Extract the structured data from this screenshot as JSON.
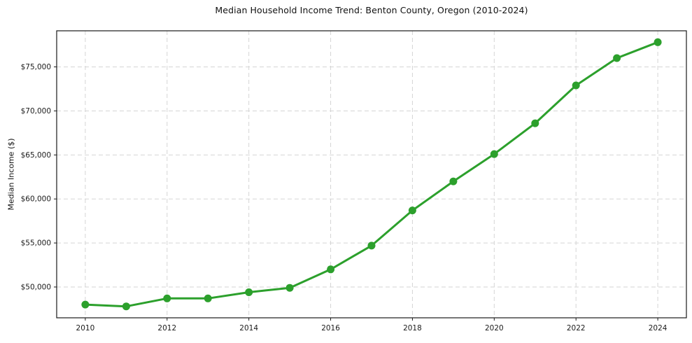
{
  "chart_data": {
    "type": "line",
    "title": "Median Household Income Trend: Benton County, Oregon (2010-2024)",
    "xlabel": "",
    "ylabel": "Median Income ($)",
    "legend": "none",
    "grid": true,
    "background_color": "#ffffff",
    "grid_color": "#d5d5d5",
    "spine_color": "#1a1a1a",
    "line_color": "#2ca02c",
    "marker": "circle",
    "xlim": [
      2009.3,
      2024.7
    ],
    "ylim": [
      46500,
      79100
    ],
    "xticks": [
      {
        "value": 2010,
        "label": "2010"
      },
      {
        "value": 2012,
        "label": "2012"
      },
      {
        "value": 2014,
        "label": "2014"
      },
      {
        "value": 2016,
        "label": "2016"
      },
      {
        "value": 2018,
        "label": "2018"
      },
      {
        "value": 2020,
        "label": "2020"
      },
      {
        "value": 2022,
        "label": "2022"
      },
      {
        "value": 2024,
        "label": "2024"
      }
    ],
    "yticks": [
      {
        "value": 50000,
        "label": "$50,000"
      },
      {
        "value": 55000,
        "label": "$55,000"
      },
      {
        "value": 60000,
        "label": "$60,000"
      },
      {
        "value": 65000,
        "label": "$65,000"
      },
      {
        "value": 70000,
        "label": "$70,000"
      },
      {
        "value": 75000,
        "label": "$75,000"
      }
    ],
    "series": [
      {
        "name": "Median Household Income",
        "x": [
          2010,
          2011,
          2012,
          2013,
          2014,
          2015,
          2016,
          2017,
          2018,
          2019,
          2020,
          2021,
          2022,
          2023,
          2024
        ],
        "values": [
          48000,
          47800,
          48700,
          48700,
          49400,
          49900,
          52000,
          54700,
          58700,
          62000,
          65100,
          68600,
          72900,
          76000,
          77800
        ]
      }
    ]
  }
}
